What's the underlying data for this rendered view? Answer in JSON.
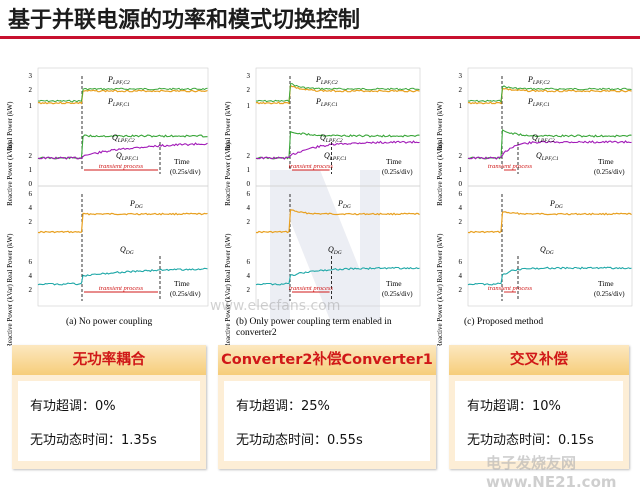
{
  "title": "基于并联电源的功率和模式切换控制",
  "panels": [
    {
      "caption": "(a) No power coupling",
      "top_labels": {
        "p1": "P_LPF,C2",
        "p2": "P_LPF,C1",
        "q1": "Q_LPF,C2",
        "q2": "Q_LPF,C1",
        "time": "Time",
        "div": "(0.25s/div)",
        "transient": "transient process"
      },
      "bottom_labels": {
        "p": "P_DG",
        "q": "Q_DG",
        "time": "Time",
        "div": "(0.25s/div)",
        "transient": "transient process"
      }
    },
    {
      "caption": "(b) Only power coupling term enabled in converter2",
      "top_labels": {
        "p1": "P_LPF,C2",
        "p2": "P_LPF,C1",
        "q1": "Q_LPF,C2",
        "q2": "Q_LPF,C1",
        "time": "Time",
        "div": "(0.25s/div)",
        "transient": "transient process"
      },
      "bottom_labels": {
        "p": "P_DG",
        "q": "Q_DG",
        "time": "Time",
        "div": "(0.25s/div)",
        "transient": "transient process"
      }
    },
    {
      "caption": "(c) Proposed method",
      "top_labels": {
        "p1": "P_LPF,C2",
        "p2": "P_LPF,C1",
        "q1": "Q_LPF,C2",
        "q2": "Q_LPF,C1",
        "time": "Time",
        "div": "(0.25s/div)",
        "transient": "transient process"
      },
      "bottom_labels": {
        "p": "P_DG",
        "q": "Q_DG",
        "time": "Time",
        "div": "(0.25s/div)",
        "transient": "transient process"
      }
    }
  ],
  "axes": {
    "real_power_kw": "Real Power (kW)",
    "reactive_power_kvar": "Reactive Power (kVar)",
    "ticks_top_p": [
      "3",
      "2",
      "1"
    ],
    "ticks_top_q": [
      "2",
      "1",
      "0"
    ],
    "ticks_bottom": [
      "6",
      "4",
      "2"
    ]
  },
  "cards": [
    {
      "header": "无功率耦合",
      "line1": "有功超调：0%",
      "line2": "无功动态时间：1.35s"
    },
    {
      "header": "Converter2补偿Converter1",
      "line1": "有功超调：25%",
      "line2": "无功动态时间：0.55s"
    },
    {
      "header": "交叉补偿",
      "line1": "有功超调：10%",
      "line2": "无功动态时间：0.15s"
    }
  ],
  "watermark": {
    "center": "www.elecfans.com",
    "bottom": "电子发烧友网 www.NE21.com"
  },
  "colors": {
    "title_rule": "#c8102e",
    "card_header_text": "#d01818",
    "card_bg": "#fdeed6",
    "trace_yellow": "#e8a020",
    "trace_green": "#3aa63a",
    "trace_purple": "#a21bb8",
    "trace_cyan": "#20a8a8",
    "transient_red": "#d01818"
  }
}
